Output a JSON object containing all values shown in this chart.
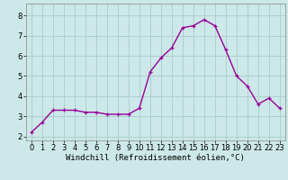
{
  "hours": [
    0,
    1,
    2,
    3,
    4,
    5,
    6,
    7,
    8,
    9,
    10,
    11,
    12,
    13,
    14,
    15,
    16,
    17,
    18,
    19,
    20,
    21,
    22,
    23
  ],
  "values": [
    2.2,
    2.7,
    3.3,
    3.3,
    3.3,
    3.2,
    3.2,
    3.1,
    3.1,
    3.1,
    3.4,
    5.2,
    5.9,
    6.4,
    7.4,
    7.5,
    7.8,
    7.5,
    6.3,
    5.0,
    4.5,
    3.6,
    3.9,
    3.4
  ],
  "line_color": "#990099",
  "marker": "+",
  "marker_size": 3,
  "bg_color": "#cce8e8",
  "grid_color": "#aacccc",
  "xlabel": "Windchill (Refroidissement éolien,°C)",
  "ylim": [
    1.8,
    8.6
  ],
  "yticks": [
    2,
    3,
    4,
    5,
    6,
    7,
    8
  ],
  "xticks": [
    0,
    1,
    2,
    3,
    4,
    5,
    6,
    7,
    8,
    9,
    10,
    11,
    12,
    13,
    14,
    15,
    16,
    17,
    18,
    19,
    20,
    21,
    22,
    23
  ],
  "xlabel_fontsize": 6.5,
  "tick_fontsize": 6,
  "line_width": 1.0
}
